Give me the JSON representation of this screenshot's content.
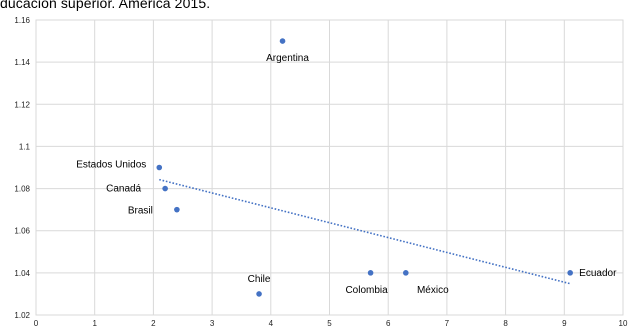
{
  "title": "ducación superior. América 2015.",
  "chart_data": {
    "type": "scatter",
    "xlim": [
      0,
      10
    ],
    "ylim": [
      1.02,
      1.16
    ],
    "xticks": [
      "0",
      "1",
      "2",
      "3",
      "4",
      "5",
      "6",
      "7",
      "8",
      "9",
      "10"
    ],
    "yticks": [
      "1.02",
      "1.04",
      "1.06",
      "1.08",
      "1.1",
      "1.12",
      "1.14",
      "1.16"
    ],
    "grid": true,
    "trendline": {
      "type": "linear",
      "style": "dotted"
    },
    "points": [
      {
        "label": "Argentina",
        "x": 4.2,
        "y": 1.15
      },
      {
        "label": "Estados Unidos",
        "x": 2.1,
        "y": 1.09
      },
      {
        "label": "Canadá",
        "x": 2.2,
        "y": 1.08
      },
      {
        "label": "Brasil",
        "x": 2.4,
        "y": 1.07
      },
      {
        "label": "Chile",
        "x": 3.8,
        "y": 1.03
      },
      {
        "label": "Colombia",
        "x": 5.7,
        "y": 1.04
      },
      {
        "label": "México",
        "x": 6.3,
        "y": 1.04
      },
      {
        "label": "Ecuador",
        "x": 9.1,
        "y": 1.04
      }
    ],
    "colors": {
      "marker": "#4472c4",
      "trend": "#4472c4",
      "grid": "#d9d9d9"
    }
  }
}
